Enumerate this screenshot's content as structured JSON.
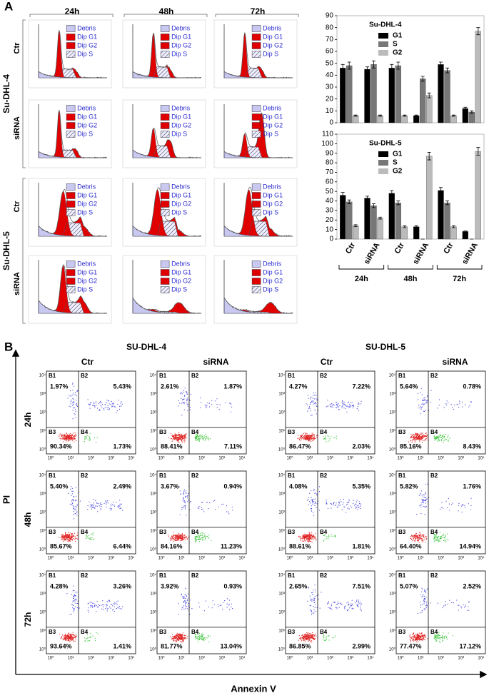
{
  "figure": {
    "panel_a_label": "A",
    "panel_b_label": "B"
  },
  "panel_a": {
    "columns": [
      "24h",
      "48h",
      "72h"
    ],
    "cell_lines": [
      "Su-DHL-4",
      "Su-DHL-5"
    ],
    "conditions": [
      "Ctr",
      "siRNA"
    ],
    "histogram_legend": [
      "Debris",
      "Dip G1",
      "Dip G2",
      "Dip S"
    ]
  },
  "chart_data": [
    {
      "type": "bar",
      "title": "Su-DHL-4",
      "series": [
        {
          "name": "G1",
          "color": "#000000",
          "values": [
            46,
            45,
            46,
            6,
            49,
            12
          ],
          "errors": [
            3,
            2,
            3,
            0.5,
            2,
            1
          ]
        },
        {
          "name": "S",
          "color": "#777777",
          "values": [
            48,
            49,
            48,
            37,
            44,
            9
          ],
          "errors": [
            3,
            3,
            3,
            2,
            2,
            1
          ]
        },
        {
          "name": "G2",
          "color": "#bbbbbb",
          "values": [
            6,
            6,
            6,
            23,
            6,
            77
          ],
          "errors": [
            0.5,
            0.5,
            0.5,
            2,
            0.5,
            3
          ]
        }
      ],
      "ylim": [
        0,
        90
      ],
      "yticks": [
        0,
        10,
        20,
        30,
        40,
        50,
        60,
        70,
        80,
        90
      ]
    },
    {
      "type": "bar",
      "title": "Su-DHL-5",
      "categories": [
        "Ctr",
        "siRNA",
        "Ctr",
        "siRNA",
        "Ctr",
        "siRNA"
      ],
      "groups": [
        "24h",
        "48h",
        "72h"
      ],
      "series": [
        {
          "name": "G1",
          "color": "#000000",
          "values": [
            46,
            43,
            48,
            13,
            51,
            8
          ],
          "errors": [
            3,
            2,
            3,
            1,
            3,
            0.5
          ]
        },
        {
          "name": "S",
          "color": "#777777",
          "values": [
            39,
            35,
            38,
            0,
            38,
            0
          ],
          "errors": [
            2,
            2,
            2,
            0,
            2,
            0
          ]
        },
        {
          "name": "G2",
          "color": "#bbbbbb",
          "values": [
            14,
            22,
            13,
            87,
            13,
            92
          ],
          "errors": [
            1,
            1,
            1,
            4,
            1,
            4
          ]
        }
      ],
      "ylim": [
        0,
        110
      ],
      "yticks": [
        0,
        10,
        20,
        30,
        40,
        50,
        60,
        70,
        80,
        90,
        100,
        110
      ]
    }
  ],
  "panel_b": {
    "cell_lines": [
      "SU-DHL-4",
      "SU-DHL-5"
    ],
    "conditions": [
      "Ctr",
      "siRNA"
    ],
    "times": [
      "24h",
      "48h",
      "72h"
    ],
    "quadrants": [
      "B1",
      "B2",
      "B3",
      "B4"
    ],
    "axis_ticks": [
      "10⁰",
      "10¹",
      "10²",
      "10³",
      "10⁴"
    ],
    "y_axis_label": "PI",
    "x_axis_label": "Annexin V",
    "plots": [
      [
        [
          "1.97%",
          "5.43%",
          "90.34%",
          "1.73%"
        ],
        [
          "2.61%",
          "1.87%",
          "88.41%",
          "7.11%"
        ],
        [
          "4.27%",
          "7.22%",
          "86.47%",
          "2.03%"
        ],
        [
          "5.64%",
          "0.78%",
          "85.16%",
          "8.43%"
        ]
      ],
      [
        [
          "5.40%",
          "2.49%",
          "85.67%",
          "6.44%"
        ],
        [
          "3.67%",
          "0.94%",
          "84.16%",
          "11.23%"
        ],
        [
          "4.08%",
          "5.35%",
          "88.61%",
          "1.81%"
        ],
        [
          "5.82%",
          "1.76%",
          "64.40%",
          "14.94%"
        ]
      ],
      [
        [
          "4.28%",
          "3.26%",
          "93.64%",
          "1.41%"
        ],
        [
          "3.92%",
          "0.93%",
          "81.77%",
          "13.04%"
        ],
        [
          "2.65%",
          "7.51%",
          "86.85%",
          "2.99%"
        ],
        [
          "5.07%",
          "2.52%",
          "77.47%",
          "17.12%"
        ]
      ]
    ]
  }
}
